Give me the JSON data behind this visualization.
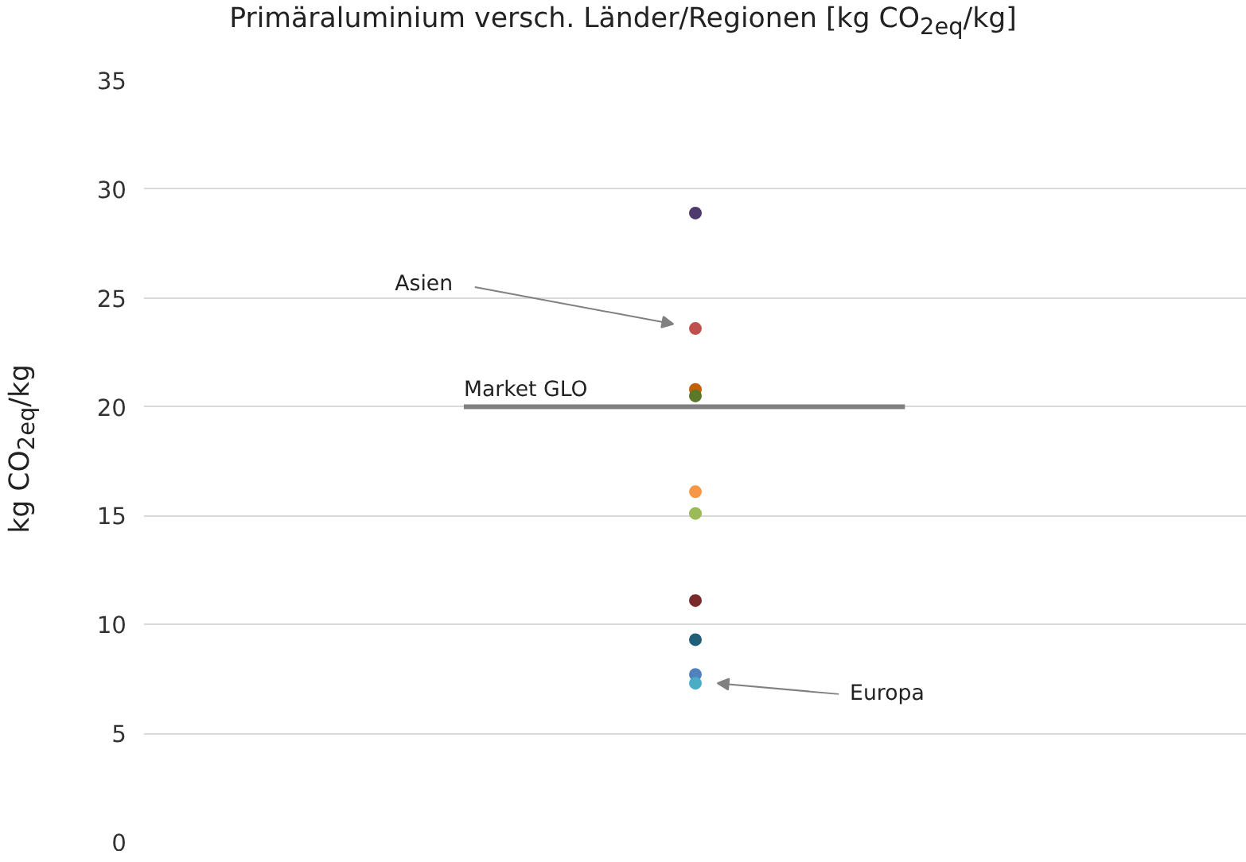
{
  "chart_data": {
    "type": "scatter",
    "title": "Primäraluminium versch. Länder/Regionen [kg CO$_{2eq}$/kg]",
    "ylabel": "kg CO$_{2eq}$/kg",
    "categories": [
      null
    ],
    "series": [
      {
        "color": "#4e3b6e",
        "values": [
          28.9
        ]
      },
      {
        "color": "#c0504d",
        "values": [
          23.6
        ]
      },
      {
        "color": "#c0620a",
        "values": [
          20.8
        ]
      },
      {
        "color": "#5a7a2a",
        "values": [
          20.5
        ]
      },
      {
        "color": "#f79646",
        "values": [
          16.1
        ]
      },
      {
        "color": "#9bbb59",
        "values": [
          15.1
        ]
      },
      {
        "color": "#7a2a2a",
        "values": [
          11.1
        ]
      },
      {
        "color": "#215f78",
        "values": [
          9.3
        ]
      },
      {
        "color": "#4f81bd",
        "values": [
          7.7
        ]
      },
      {
        "color": "#4bacc6",
        "values": [
          7.3
        ]
      }
    ],
    "ref_lines": [
      {
        "axis": "y",
        "value": 20,
        "label": "Market GLO",
        "color": "#808080"
      }
    ],
    "annotations": [
      "Asien",
      "Europa"
    ],
    "ylim": [
      0,
      35
    ],
    "yticks": [
      0,
      5,
      10,
      15,
      20,
      25,
      30,
      35
    ],
    "grid": "y",
    "marker": "circle",
    "tick_labels": "y"
  }
}
